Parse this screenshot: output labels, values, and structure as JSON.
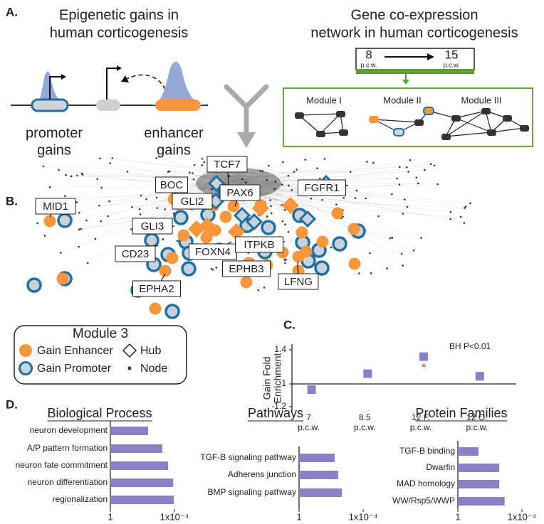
{
  "panels": {
    "A": {
      "label": "A.",
      "left_title": [
        "Epigenetic gains in",
        "human corticogenesis"
      ],
      "promoter": [
        "promoter",
        "gains"
      ],
      "enhancer": [
        "enhancer",
        "gains"
      ],
      "right_title": [
        "Gene co-expression",
        "network in human corticogenesis"
      ],
      "timeline": {
        "start": "8",
        "end": "15",
        "unit": "p.c.w."
      },
      "modules": [
        "Module I",
        "Module II",
        "Module III"
      ]
    },
    "B": {
      "label": "B.",
      "genes": [
        "MID1",
        "BOC",
        "TCF7",
        "GLI2",
        "PAX6",
        "FGFR1",
        "GLI3",
        "CD23",
        "FOXN4",
        "ITPKB",
        "EPHB3",
        "LFNG",
        "EPHA2"
      ],
      "legend": {
        "title": "Module 3",
        "items": [
          "Gain Enhancer",
          "Hub",
          "Gain Promoter",
          "Node"
        ]
      }
    },
    "C": {
      "label": "C."
    },
    "D": {
      "label": "D."
    }
  },
  "chart_data": [
    {
      "type": "square-points",
      "y_label": [
        "Gain Fold",
        "Enrichment"
      ],
      "annotation": "BH P<0.01",
      "significance_mark": "*",
      "categories": [
        "7",
        "8.5",
        "12 F.",
        "12 O."
      ],
      "category_unit": "p.c.w.",
      "values": [
        -1.05,
        1.12,
        1.32,
        1.09
      ],
      "color": "#8b80c6",
      "ylim": [
        -1.2,
        1.4
      ],
      "yticks": [
        1.4,
        1,
        -1.2
      ]
    },
    {
      "type": "hbar",
      "title": "Biological Process",
      "categories": [
        "neuron development",
        "A/P pattern formation",
        "neuron fate commitment",
        "neuron differentiation",
        "regionalization"
      ],
      "values": [
        0.0044,
        0.00057,
        0.00025,
        0.00012,
        0.00011
      ],
      "color": "#8b80c6",
      "xlim": [
        1,
        0.0001
      ],
      "xticks": [
        1,
        {
          "value": 0.0001,
          "label": "1x10⁻⁴"
        }
      ],
      "log_scale": true
    },
    {
      "type": "hbar",
      "title": "Pathways",
      "categories": [
        "TGF-B signaling pathway",
        "Adherens junction",
        "BMP signaling pathway"
      ],
      "values": [
        0.006,
        0.0036,
        0.0021
      ],
      "color": "#8b80c6",
      "xlim": [
        1,
        0.0001
      ],
      "xticks": [
        1,
        {
          "value": 0.0001,
          "label": "1x10⁻⁴"
        }
      ],
      "log_scale": true
    },
    {
      "type": "hbar",
      "title": "Protein Families",
      "categories": [
        "TGF-B binding",
        "Dwarfin",
        "MAD homology",
        "WW/Rsp5/WWP"
      ],
      "values": [
        0.051,
        0.0026,
        0.0026,
        0.0012
      ],
      "color": "#8b80c6",
      "xlim": [
        1,
        0.0001
      ],
      "xticks": [
        1,
        {
          "value": 0.0001,
          "label": "1x10⁻⁴"
        }
      ],
      "log_scale": true
    }
  ]
}
